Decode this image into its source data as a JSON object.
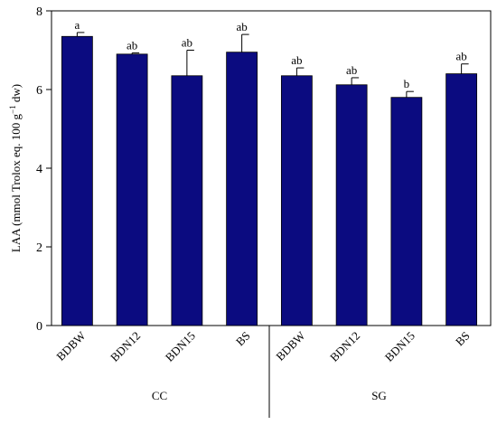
{
  "chart_data": {
    "type": "bar",
    "ylabel_main": "LAA (mmol Trolox eq. 100 g",
    "ylabel_sup": "−1",
    "ylabel_end": " dw)",
    "xlabel": "",
    "ylim": [
      0,
      8
    ],
    "yticks": [
      "0",
      "2",
      "4",
      "6",
      "8"
    ],
    "bar_color": "#0b0b80",
    "bars": [
      {
        "category": "BDBW",
        "group": "CC",
        "value": 7.35,
        "error": 0.1,
        "sig": "a"
      },
      {
        "category": "BDN12",
        "group": "CC",
        "value": 6.9,
        "error": 0.03,
        "sig": "ab"
      },
      {
        "category": "BDN15",
        "group": "CC",
        "value": 6.35,
        "error": 0.65,
        "sig": "ab"
      },
      {
        "category": "BS",
        "group": "CC",
        "value": 6.95,
        "error": 0.45,
        "sig": "ab"
      },
      {
        "category": "BDBW",
        "group": "SG",
        "value": 6.35,
        "error": 0.2,
        "sig": "ab"
      },
      {
        "category": "BDN12",
        "group": "SG",
        "value": 6.12,
        "error": 0.18,
        "sig": "ab"
      },
      {
        "category": "BDN15",
        "group": "SG",
        "value": 5.8,
        "error": 0.15,
        "sig": "b"
      },
      {
        "category": "BS",
        "group": "SG",
        "value": 6.4,
        "error": 0.25,
        "sig": "ab"
      }
    ],
    "groups": [
      "CC",
      "SG"
    ],
    "grid": false,
    "legend": "none"
  }
}
